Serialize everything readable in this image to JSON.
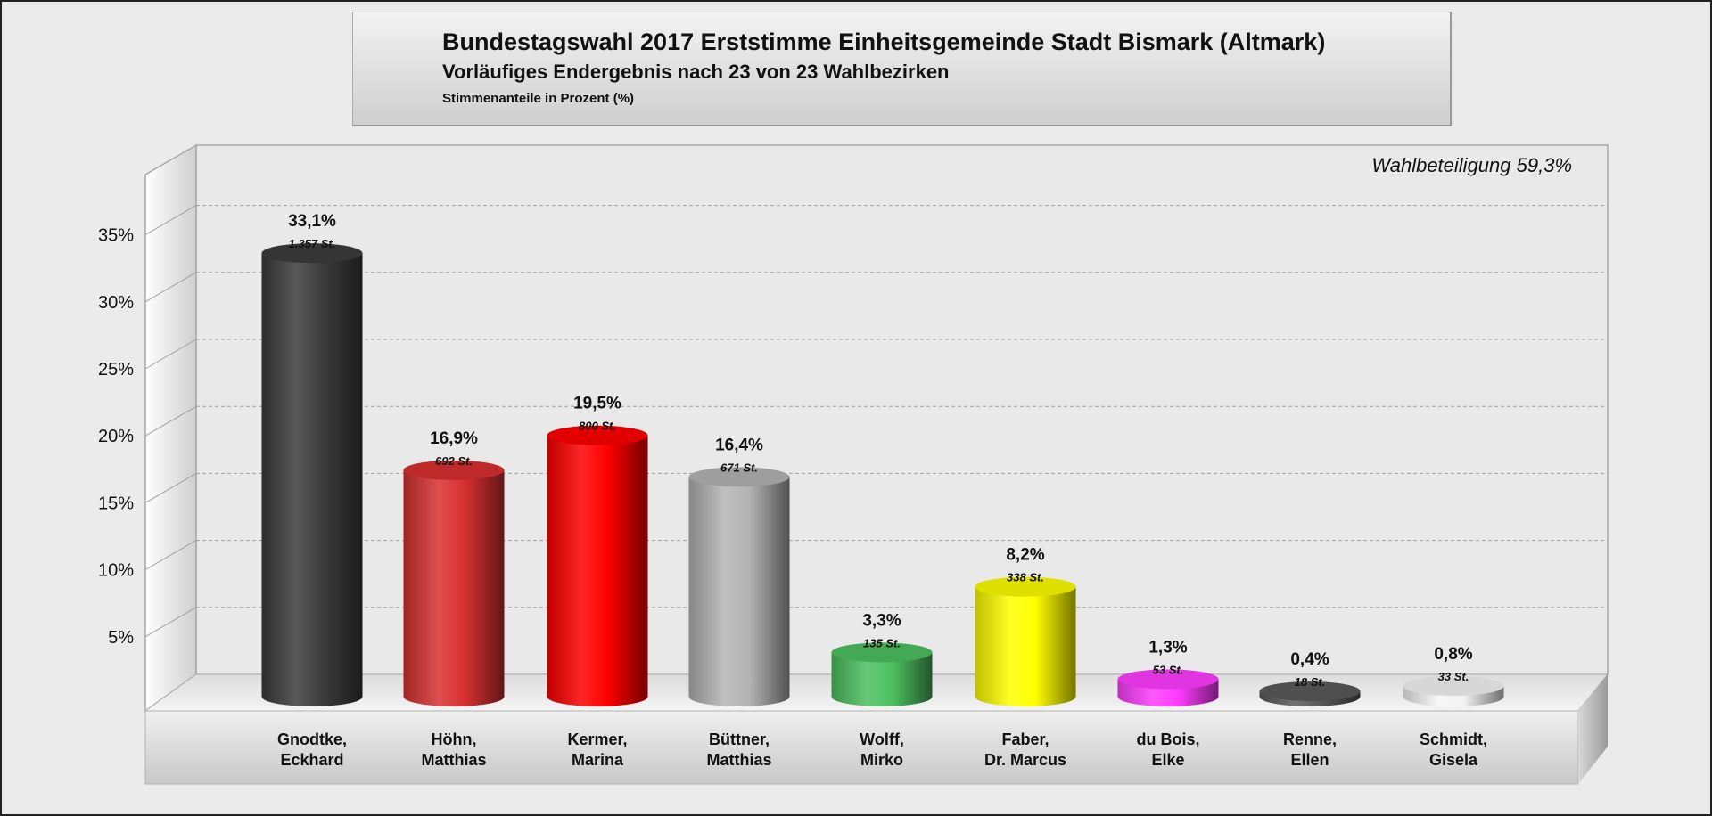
{
  "chart_data": {
    "type": "bar",
    "title": "Bundestagswahl 2017 Erststimme Einheitsgemeinde Stadt Bismark (Altmark)",
    "subtitle": "Vorläufiges Endergebnis nach 23 von 23 Wahlbezirken",
    "ylabel": "Stimmenanteile in Prozent (%)",
    "annotation": "Wahlbeteiligung 59,3%",
    "ylim": [
      0,
      40
    ],
    "grid": true,
    "yticks": [
      "5%",
      "10%",
      "15%",
      "20%",
      "25%",
      "30%",
      "35%"
    ],
    "ytick_values": [
      5,
      10,
      15,
      20,
      25,
      30,
      35
    ],
    "categories": [
      [
        "Gnodtke,",
        "Eckhard"
      ],
      [
        "Höhn,",
        "Matthias"
      ],
      [
        "Kermer,",
        "Marina"
      ],
      [
        "Büttner,",
        "Matthias"
      ],
      [
        "Wolff,",
        "Mirko"
      ],
      [
        "Faber,",
        "Dr. Marcus"
      ],
      [
        "du Bois,",
        "Elke"
      ],
      [
        "Renne,",
        "Ellen"
      ],
      [
        "Schmidt,",
        "Gisela"
      ]
    ],
    "values": [
      33.1,
      16.9,
      19.5,
      16.4,
      3.3,
      8.2,
      1.3,
      0.4,
      0.8
    ],
    "value_labels": [
      "33,1%",
      "16,9%",
      "19,5%",
      "16,4%",
      "3,3%",
      "8,2%",
      "1,3%",
      "0,4%",
      "0,8%"
    ],
    "votes": [
      "1.357 St.",
      "692 St.",
      "800 St.",
      "671 St.",
      "135 St.",
      "338 St.",
      "53 St.",
      "18 St.",
      "33 St."
    ],
    "colors": [
      "#3c3c3c",
      "#d83030",
      "#ff0000",
      "#b4b4b4",
      "#4cc060",
      "#ffff00",
      "#ff3cff",
      "#5a5a5a",
      "#f4f4f4"
    ]
  }
}
